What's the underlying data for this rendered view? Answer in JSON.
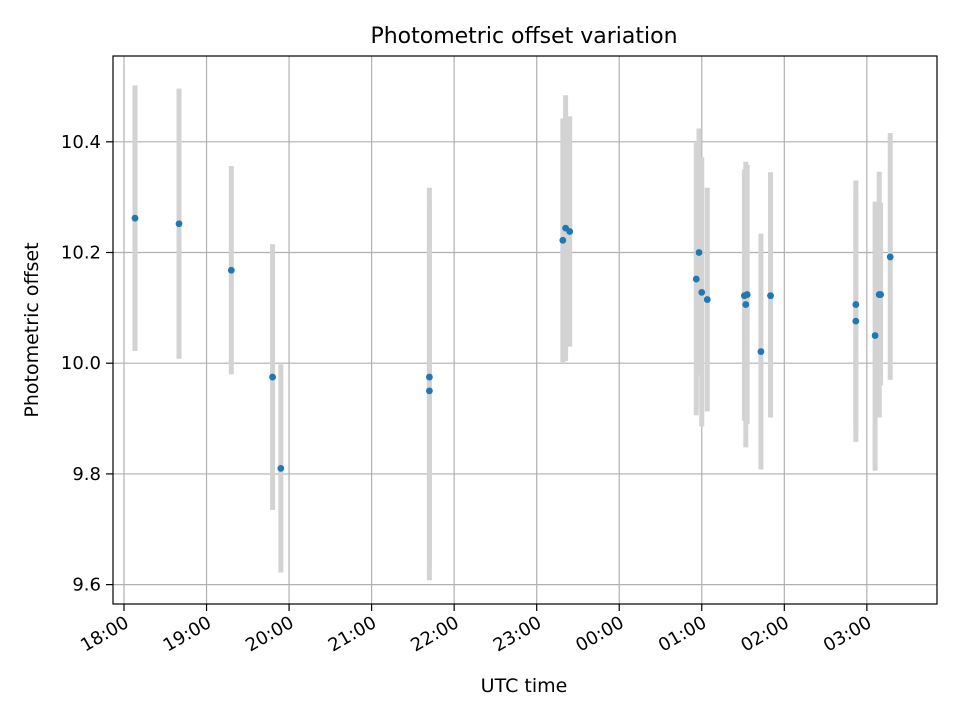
{
  "chart_data": {
    "type": "scatter",
    "title": "Photometric offset variation",
    "xlabel": "UTC time",
    "ylabel": "Photometric offset",
    "grid": true,
    "xlim": [
      "17:52",
      "03:51"
    ],
    "ylim": [
      9.565,
      10.555
    ],
    "x_ticks": [
      "18:00",
      "19:00",
      "20:00",
      "21:00",
      "22:00",
      "23:00",
      "00:00",
      "01:00",
      "02:00",
      "03:00"
    ],
    "y_ticks": [
      "9.6",
      "9.8",
      "10.0",
      "10.2",
      "10.4"
    ],
    "colors": {
      "point": "#1f77b4",
      "errorbar": "#d3d3d3",
      "grid": "#b0b0b0"
    },
    "points": [
      {
        "x": "18:08",
        "y": 10.262,
        "ylo": 10.022,
        "yhi": 10.502
      },
      {
        "x": "18:40",
        "y": 10.252,
        "ylo": 10.008,
        "yhi": 10.496
      },
      {
        "x": "19:18",
        "y": 10.168,
        "ylo": 9.98,
        "yhi": 10.356
      },
      {
        "x": "19:48",
        "y": 9.975,
        "ylo": 9.735,
        "yhi": 10.215
      },
      {
        "x": "19:54",
        "y": 9.81,
        "ylo": 9.622,
        "yhi": 9.998
      },
      {
        "x": "21:42",
        "y": 9.975,
        "ylo": 9.633,
        "yhi": 10.317
      },
      {
        "x": "21:42",
        "y": 9.95,
        "ylo": 9.608,
        "yhi": 10.292
      },
      {
        "x": "23:19",
        "y": 10.222,
        "ylo": 10.002,
        "yhi": 10.442
      },
      {
        "x": "23:21",
        "y": 10.244,
        "ylo": 10.004,
        "yhi": 10.484
      },
      {
        "x": "23:24",
        "y": 10.238,
        "ylo": 10.03,
        "yhi": 10.446
      },
      {
        "x": "00:56",
        "y": 10.152,
        "ylo": 9.906,
        "yhi": 10.398
      },
      {
        "x": "00:58",
        "y": 10.2,
        "ylo": 9.978,
        "yhi": 10.424
      },
      {
        "x": "01:00",
        "y": 10.128,
        "ylo": 9.886,
        "yhi": 10.372
      },
      {
        "x": "01:04",
        "y": 10.115,
        "ylo": 9.913,
        "yhi": 10.317
      },
      {
        "x": "01:31",
        "y": 10.122,
        "ylo": 9.896,
        "yhi": 10.35
      },
      {
        "x": "01:32",
        "y": 10.106,
        "ylo": 9.848,
        "yhi": 10.364
      },
      {
        "x": "01:33",
        "y": 10.124,
        "ylo": 9.89,
        "yhi": 10.358
      },
      {
        "x": "01:43",
        "y": 10.021,
        "ylo": 9.808,
        "yhi": 10.234
      },
      {
        "x": "01:50",
        "y": 10.122,
        "ylo": 9.902,
        "yhi": 10.345
      },
      {
        "x": "02:52",
        "y": 10.106,
        "ylo": 9.88,
        "yhi": 10.33
      },
      {
        "x": "02:52",
        "y": 10.076,
        "ylo": 9.858,
        "yhi": 10.298
      },
      {
        "x": "03:06",
        "y": 10.05,
        "ylo": 9.806,
        "yhi": 10.292
      },
      {
        "x": "03:09",
        "y": 10.124,
        "ylo": 9.902,
        "yhi": 10.346
      },
      {
        "x": "03:10",
        "y": 10.124,
        "ylo": 9.96,
        "yhi": 10.29
      },
      {
        "x": "03:17",
        "y": 10.192,
        "ylo": 9.97,
        "yhi": 10.416
      }
    ]
  }
}
